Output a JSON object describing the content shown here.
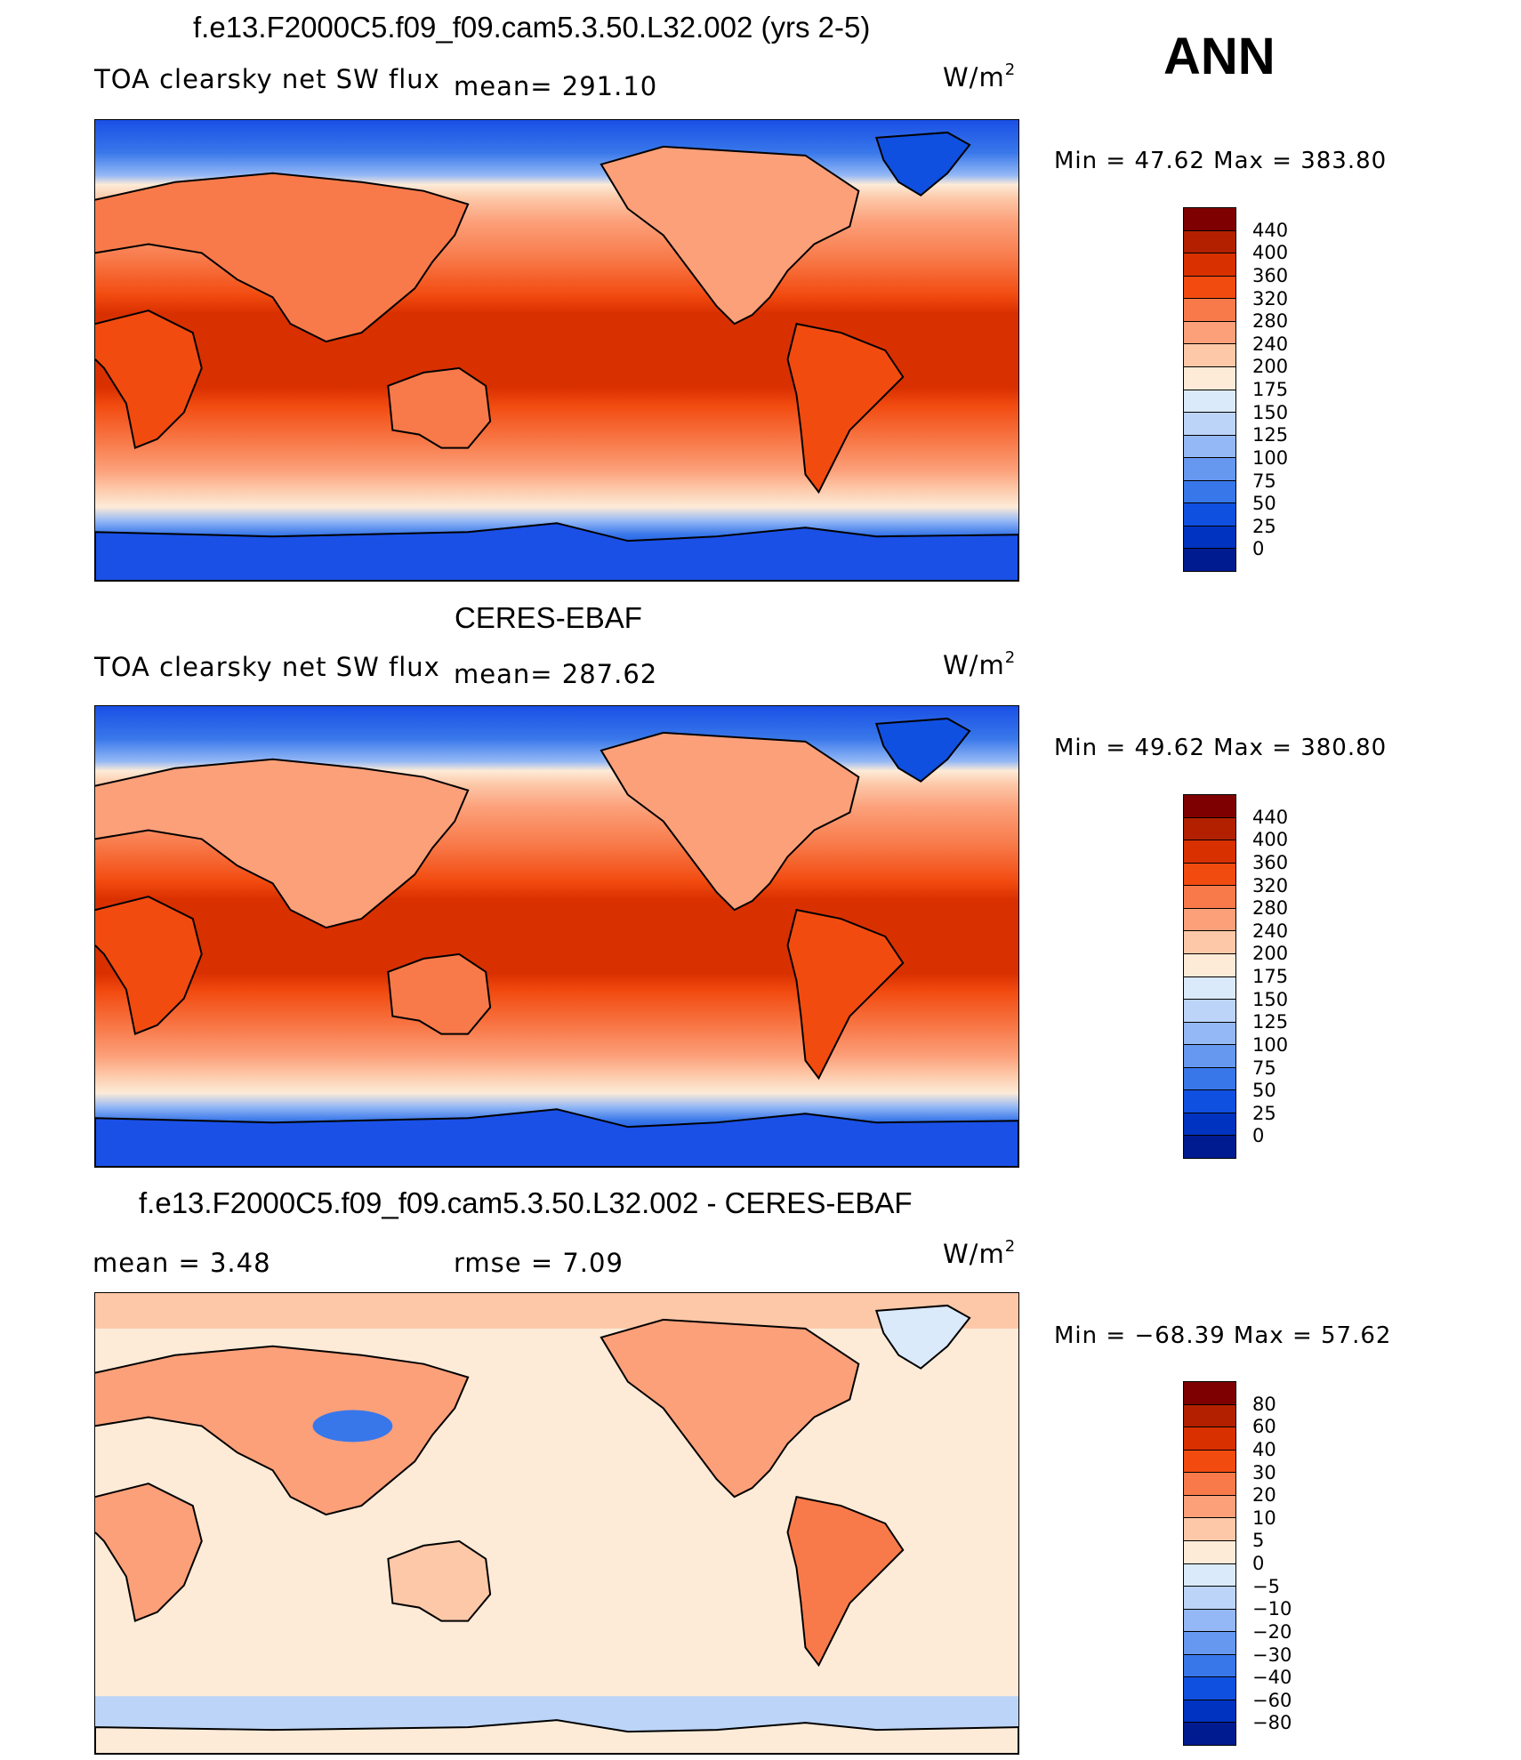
{
  "header": {
    "title": "f.e13.F2000C5.f09_f09.cam5.3.50.L32.002 (yrs 2-5)",
    "season": "ANN"
  },
  "panels": [
    {
      "title": "",
      "variable": "TOA clearsky net SW flux",
      "stat1": "mean= 291.10",
      "stat2": "",
      "units_base": "W/m",
      "units_exp": "2",
      "minmax": "Min =   47.62 Max = 383.80",
      "colorbar": {
        "labels": [
          "440",
          "400",
          "360",
          "320",
          "280",
          "240",
          "200",
          "175",
          "150",
          "125",
          "100",
          "75",
          "50",
          "25",
          "0"
        ],
        "colors": [
          "#7f0000",
          "#b22000",
          "#d93000",
          "#f24b10",
          "#f87a4a",
          "#fca07a",
          "#fdc8a8",
          "#fdebd8",
          "#dbeafb",
          "#bcd4f8",
          "#94b8f5",
          "#6698f0",
          "#3877ea",
          "#1050e0",
          "#0033c0",
          "#001a90"
        ]
      }
    },
    {
      "title": "CERES-EBAF",
      "variable": "TOA clearsky net SW flux",
      "stat1": "mean= 287.62",
      "stat2": "",
      "units_base": "W/m",
      "units_exp": "2",
      "minmax": "Min =   49.62 Max = 380.80",
      "colorbar": {
        "labels": [
          "440",
          "400",
          "360",
          "320",
          "280",
          "240",
          "200",
          "175",
          "150",
          "125",
          "100",
          "75",
          "50",
          "25",
          "0"
        ],
        "colors": [
          "#7f0000",
          "#b22000",
          "#d93000",
          "#f24b10",
          "#f87a4a",
          "#fca07a",
          "#fdc8a8",
          "#fdebd8",
          "#dbeafb",
          "#bcd4f8",
          "#94b8f5",
          "#6698f0",
          "#3877ea",
          "#1050e0",
          "#0033c0",
          "#001a90"
        ]
      }
    },
    {
      "title": "f.e13.F2000C5.f09_f09.cam5.3.50.L32.002 - CERES-EBAF",
      "variable": "",
      "stat1": "mean =    3.48",
      "stat2": "rmse =    7.09",
      "units_base": "W/m",
      "units_exp": "2",
      "minmax": "Min = −68.39 Max =   57.62",
      "colorbar": {
        "labels": [
          "80",
          "60",
          "40",
          "30",
          "20",
          "10",
          "5",
          "0",
          "−5",
          "−10",
          "−20",
          "−30",
          "−40",
          "−60",
          "−80"
        ],
        "colors": [
          "#7f0000",
          "#b22000",
          "#d93000",
          "#f24b10",
          "#f87a4a",
          "#fca07a",
          "#fdc8a8",
          "#fdebd8",
          "#dbeafb",
          "#bcd4f8",
          "#94b8f5",
          "#6698f0",
          "#3877ea",
          "#1050e0",
          "#0033c0",
          "#001a90"
        ]
      }
    }
  ]
}
